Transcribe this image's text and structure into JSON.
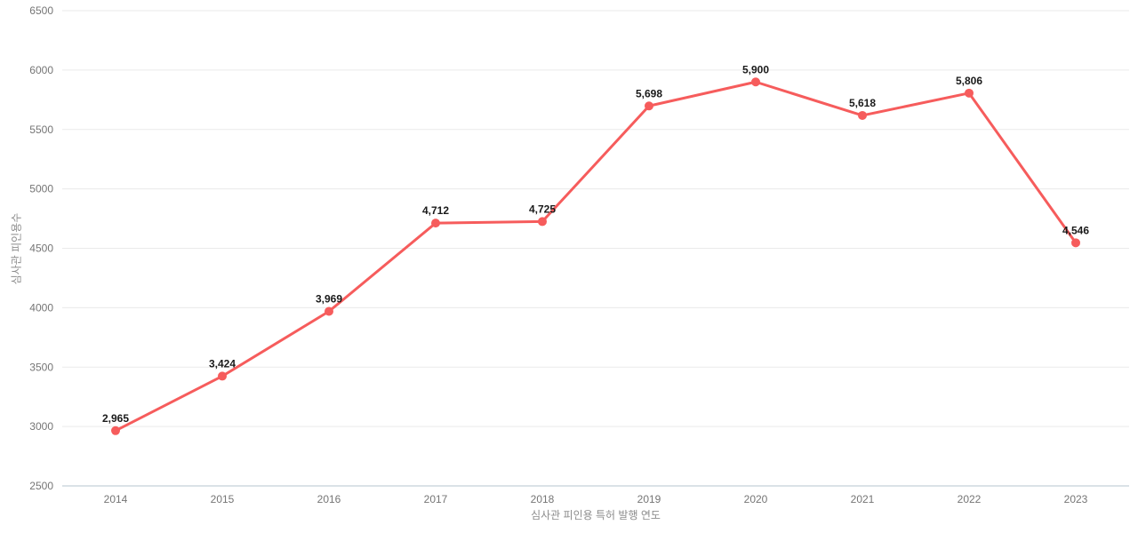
{
  "chart_data": {
    "type": "line",
    "title": "",
    "xlabel": "심사관 피인용 특허 발행 연도",
    "ylabel": "심사관 피인용수",
    "categories": [
      "2014",
      "2015",
      "2016",
      "2017",
      "2018",
      "2019",
      "2020",
      "2021",
      "2022",
      "2023"
    ],
    "series": [
      {
        "name": "심사관 피인용수",
        "values": [
          2965,
          3424,
          3969,
          4712,
          4725,
          5698,
          5900,
          5618,
          5806,
          4546
        ],
        "labels": [
          "2,965",
          "3,424",
          "3,969",
          "4,712",
          "4,725",
          "5,698",
          "5,900",
          "5,618",
          "5,806",
          "4,546"
        ],
        "color": "#f65c5c"
      }
    ],
    "ylim": [
      2500,
      6500
    ],
    "ytick_step": 500,
    "yticks": [
      "2500",
      "3000",
      "3500",
      "4000",
      "4500",
      "5000",
      "5500",
      "6000",
      "6500"
    ],
    "grid": "horizontal",
    "legend": "none",
    "colors": {
      "grid": "#eaeaea",
      "axis_line": "#b4c5cf",
      "tick_label": "#757575",
      "axis_title": "#8c8c8c",
      "data_label": "#1a1a1a",
      "background": "#ffffff"
    }
  }
}
